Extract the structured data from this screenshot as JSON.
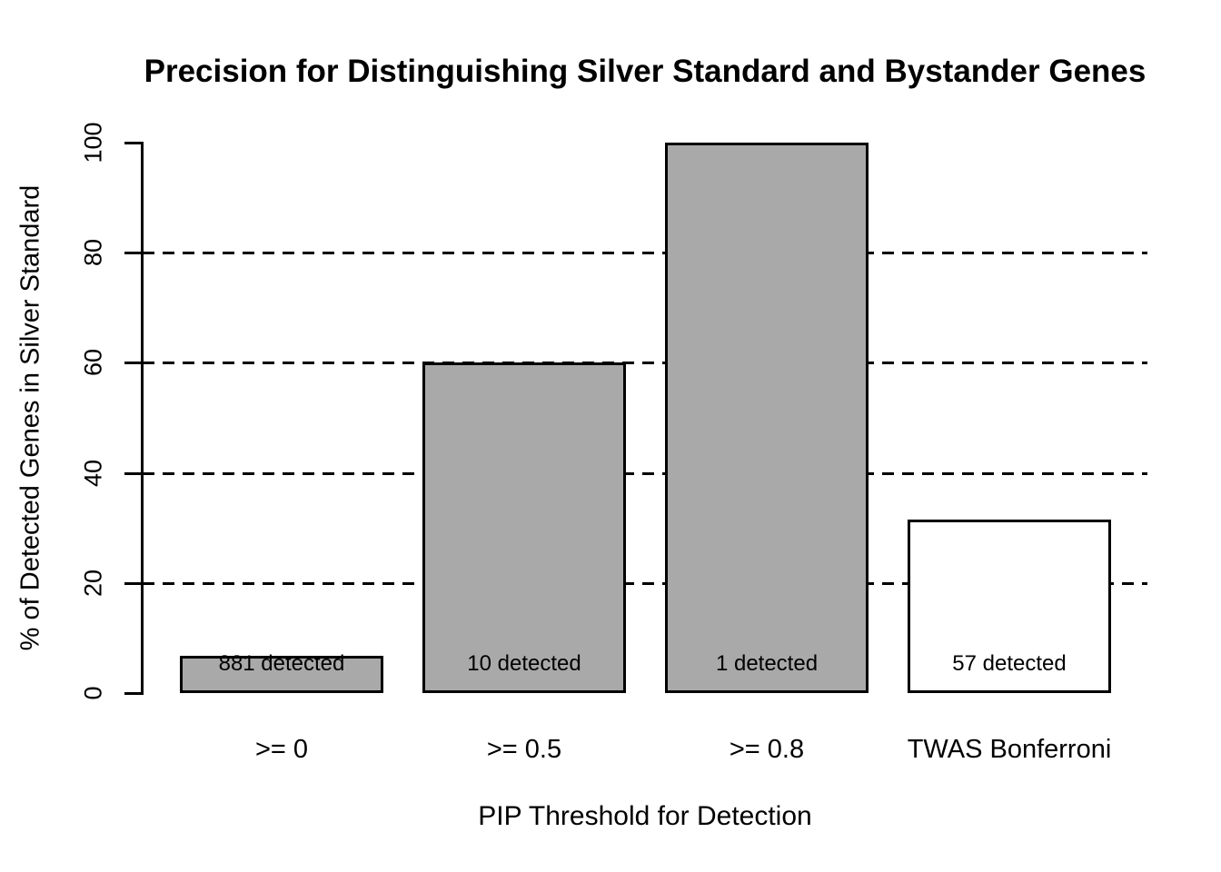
{
  "chart_data": {
    "type": "bar",
    "title": "Precision for Distinguishing Silver Standard and Bystander Genes",
    "xlabel": "PIP Threshold for Detection",
    "ylabel": "% of Detected Genes in Silver Standard",
    "categories": [
      ">= 0",
      ">= 0.5",
      ">= 0.8",
      "TWAS Bonferroni"
    ],
    "values": [
      6.7,
      60,
      100,
      31.6
    ],
    "bar_labels": [
      "881 detected",
      "10 detected",
      "1 detected",
      "57 detected"
    ],
    "bar_colors": [
      "#a9a9a9",
      "#a9a9a9",
      "#a9a9a9",
      "#ffffff"
    ],
    "bar_border_color": "#000000",
    "ylim": [
      0,
      100
    ],
    "yticks": [
      0,
      20,
      40,
      60,
      80,
      100
    ],
    "gridlines": [
      20,
      40,
      60,
      80
    ],
    "grid_style": "dashed",
    "legend": "none",
    "background_color": "#ffffff",
    "text_color": "#000000"
  }
}
